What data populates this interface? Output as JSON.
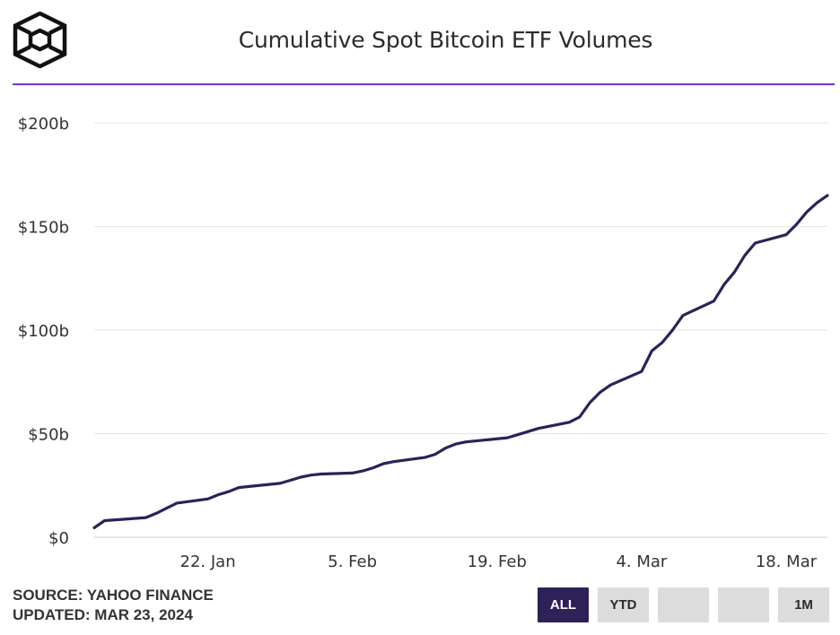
{
  "header": {
    "title": "Cumulative Spot Bitcoin ETF Volumes"
  },
  "footer": {
    "source": "SOURCE: YAHOO FINANCE",
    "updated": "UPDATED: MAR 23, 2024"
  },
  "range_buttons": [
    {
      "label": "ALL",
      "active": true
    },
    {
      "label": "YTD",
      "active": false
    },
    {
      "label": "",
      "active": false
    },
    {
      "label": "",
      "active": false
    },
    {
      "label": "1M",
      "active": false
    }
  ],
  "colors": {
    "line": "#2e2158",
    "accent_rule": "#7b2fd3",
    "active_button": "#2e2158",
    "button": "#dcdcdc",
    "grid": "#e6e6e6"
  },
  "chart_data": {
    "type": "line",
    "title": "Cumulative Spot Bitcoin ETF Volumes",
    "xlabel": "",
    "ylabel": "",
    "x_range": [
      "2024-01-11",
      "2024-03-22"
    ],
    "ylim": [
      0,
      200
    ],
    "y_unit": "$b",
    "y_ticks": [
      0,
      50,
      100,
      150,
      200
    ],
    "y_tick_labels": [
      "$0",
      "$50b",
      "$100b",
      "$150b",
      "$200b"
    ],
    "x_ticks": [
      "2024-01-22",
      "2024-02-05",
      "2024-02-19",
      "2024-03-04",
      "2024-03-18"
    ],
    "x_tick_labels": [
      "22. Jan",
      "5. Feb",
      "19. Feb",
      "4. Mar",
      "18. Mar"
    ],
    "grid": true,
    "legend": "none",
    "series": [
      {
        "x": [
          "2024-01-11",
          "2024-01-12",
          "2024-01-16",
          "2024-01-17",
          "2024-01-18",
          "2024-01-19",
          "2024-01-22",
          "2024-01-23",
          "2024-01-24",
          "2024-01-25",
          "2024-01-26",
          "2024-01-29",
          "2024-01-30",
          "2024-01-31",
          "2024-02-01",
          "2024-02-02",
          "2024-02-05",
          "2024-02-06",
          "2024-02-07",
          "2024-02-08",
          "2024-02-09",
          "2024-02-12",
          "2024-02-13",
          "2024-02-14",
          "2024-02-15",
          "2024-02-16",
          "2024-02-20",
          "2024-02-21",
          "2024-02-22",
          "2024-02-23",
          "2024-02-26",
          "2024-02-27",
          "2024-02-28",
          "2024-02-29",
          "2024-03-01",
          "2024-03-04",
          "2024-03-05",
          "2024-03-06",
          "2024-03-07",
          "2024-03-08",
          "2024-03-11",
          "2024-03-12",
          "2024-03-13",
          "2024-03-14",
          "2024-03-15",
          "2024-03-18",
          "2024-03-19",
          "2024-03-20",
          "2024-03-21",
          "2024-03-22"
        ],
        "values": [
          4.6,
          8,
          9.5,
          11.5,
          14,
          16.5,
          18.5,
          20.5,
          22,
          24,
          24.5,
          26,
          27.5,
          29,
          30,
          30.5,
          31,
          32,
          33.5,
          35.5,
          36.5,
          38.5,
          40,
          43,
          45,
          46,
          48,
          49.5,
          51,
          52.5,
          55.5,
          58,
          65,
          70,
          73.5,
          80,
          90,
          94,
          100,
          107,
          114,
          122,
          128,
          136,
          142,
          146,
          151,
          157,
          161.5,
          165
        ]
      }
    ]
  }
}
